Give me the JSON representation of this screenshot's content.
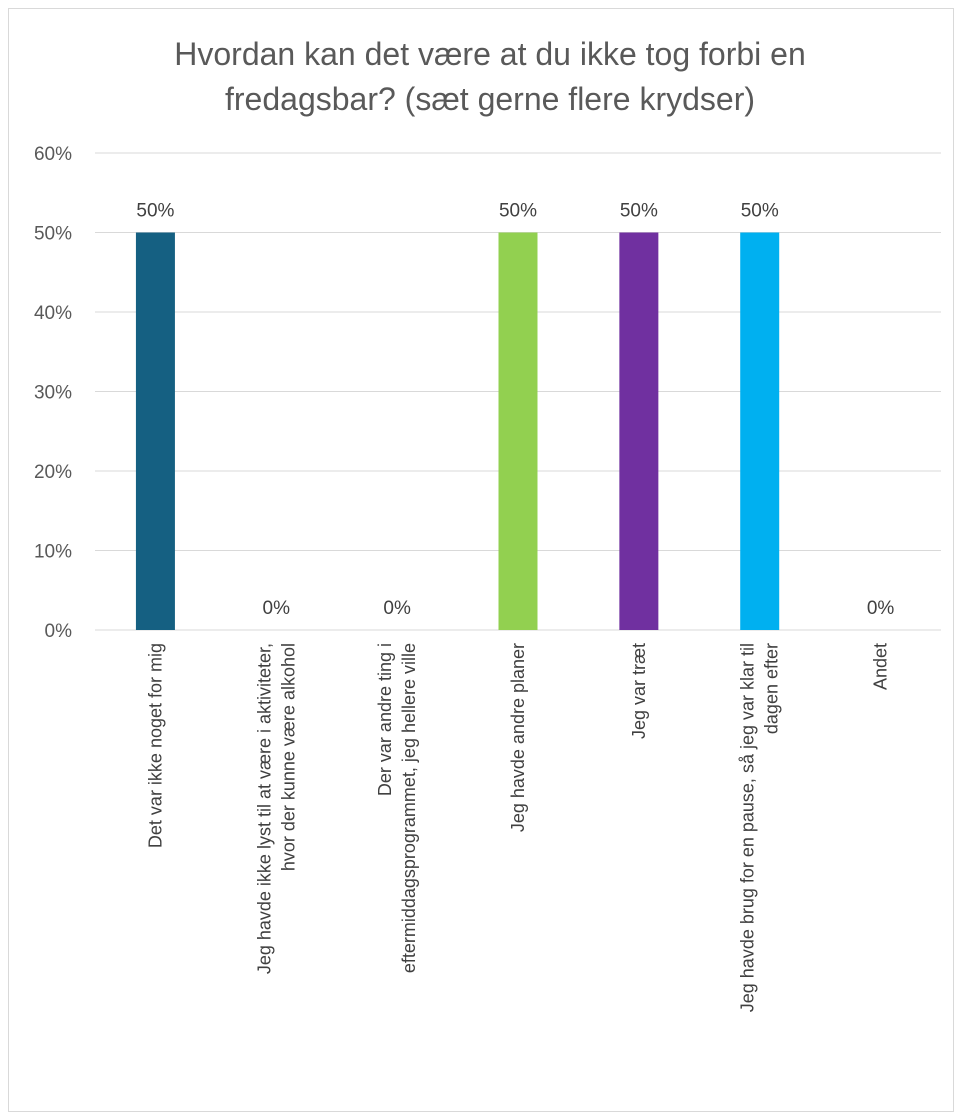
{
  "chart_data": {
    "type": "bar",
    "title_lines": [
      "Hvordan kan det være at du ikke tog forbi en",
      "fredagsbar? (sæt gerne flere krydser)"
    ],
    "categories": [
      "Det var ikke noget for mig",
      "Jeg havde ikke lyst til at være i aktiviteter, hvor der kunne være alkohol",
      "Der var andre ting i eftermiddagsprogrammet, jeg hellere ville",
      "Jeg havde andre planer",
      "Jeg var træt",
      "Jeg havde brug for en pause, så jeg var klar til dagen efter",
      "Andet"
    ],
    "category_label_lines": [
      [
        "Det var ikke noget for mig"
      ],
      [
        "Jeg havde ikke lyst til at være i aktiviteter,",
        "hvor der kunne være alkohol"
      ],
      [
        "Der var andre ting i",
        "eftermiddagsprogrammet, jeg hellere ville"
      ],
      [
        "Jeg havde andre planer"
      ],
      [
        "Jeg var træt"
      ],
      [
        "Jeg havde brug for en pause, så jeg var klar til",
        "dagen efter"
      ],
      [
        "Andet"
      ]
    ],
    "values": [
      0.5,
      0,
      0,
      0.5,
      0.5,
      0.5,
      0
    ],
    "data_labels": [
      "50%",
      "0%",
      "0%",
      "50%",
      "50%",
      "50%",
      "0%"
    ],
    "colors": [
      "#156082",
      "#E97132",
      "#196B24",
      "#92D050",
      "#7030A0",
      "#00B0F0",
      "#A02B93"
    ],
    "ylim": [
      0,
      0.6
    ],
    "yticks": [
      0,
      0.1,
      0.2,
      0.3,
      0.4,
      0.5,
      0.6
    ],
    "ytick_labels": [
      "0%",
      "10%",
      "20%",
      "30%",
      "40%",
      "50%",
      "60%"
    ],
    "grid": true,
    "legend": "none",
    "xlabel": "",
    "ylabel": ""
  }
}
